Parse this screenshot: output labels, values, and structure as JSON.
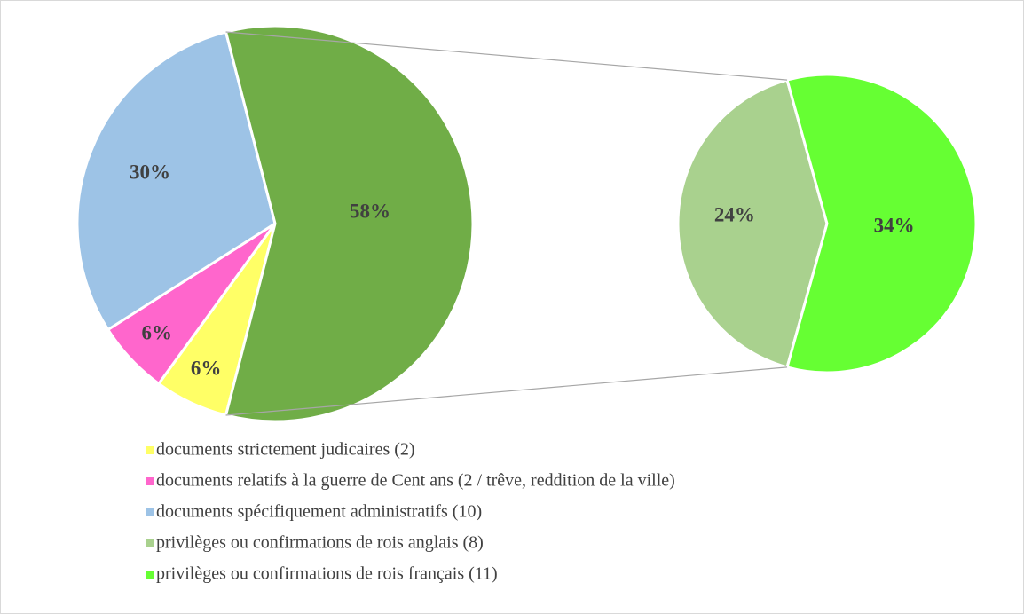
{
  "chart_data": {
    "type": "pie-of-pie",
    "primary": {
      "categories": [
        "documents strictement judicaires (2)",
        "documents relatifs à la guerre de Cent ans (2 / trêve, reddition de la ville)",
        "documents spécifiquement administratifs  (10)"
      ],
      "colors": [
        "#ffff66",
        "#ff66cc",
        "#9dc3e6"
      ],
      "values": [
        6,
        6,
        30
      ],
      "value_labels": [
        "6%",
        "6%",
        "30%"
      ]
    },
    "other": {
      "value": 58,
      "value_label": "58%",
      "color": "#70ad47"
    },
    "secondary": {
      "categories": [
        "privilèges ou confirmations de rois anglais (8)",
        "privilèges ou confirmations de rois français (11)"
      ],
      "colors": [
        "#a9d18e",
        "#66ff33"
      ],
      "values": [
        24,
        34
      ],
      "value_labels": [
        "24%",
        "34%"
      ]
    }
  }
}
